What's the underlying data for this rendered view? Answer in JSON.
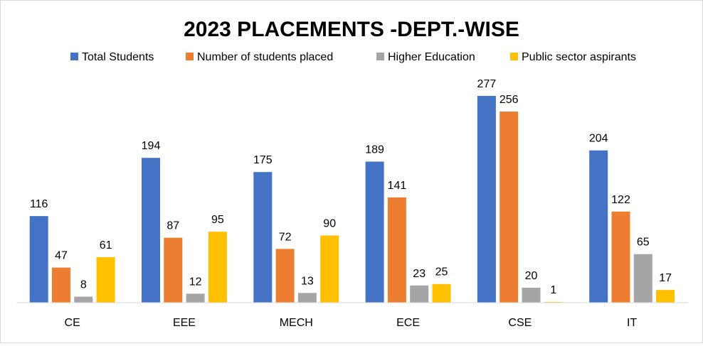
{
  "chart_data": {
    "type": "bar",
    "title": "2023 PLACEMENTS -DEPT.-WISE",
    "xlabel": "",
    "ylabel": "",
    "categories": [
      "CE",
      "EEE",
      "MECH",
      "ECE",
      "CSE",
      "IT"
    ],
    "series": [
      {
        "name": "Total Students",
        "color": "#4472C4",
        "values": [
          116,
          194,
          175,
          189,
          277,
          204
        ]
      },
      {
        "name": "Number of students placed",
        "color": "#ED7D31",
        "values": [
          47,
          87,
          72,
          141,
          256,
          122
        ]
      },
      {
        "name": "Higher Education",
        "color": "#A5A5A5",
        "values": [
          8,
          12,
          13,
          23,
          20,
          65
        ]
      },
      {
        "name": "Public sector aspirants",
        "color": "#FFC000",
        "values": [
          61,
          95,
          90,
          25,
          1,
          17
        ]
      }
    ],
    "ylim": [
      0,
      277
    ],
    "grid": false,
    "legend": "top",
    "data_labels": true
  }
}
